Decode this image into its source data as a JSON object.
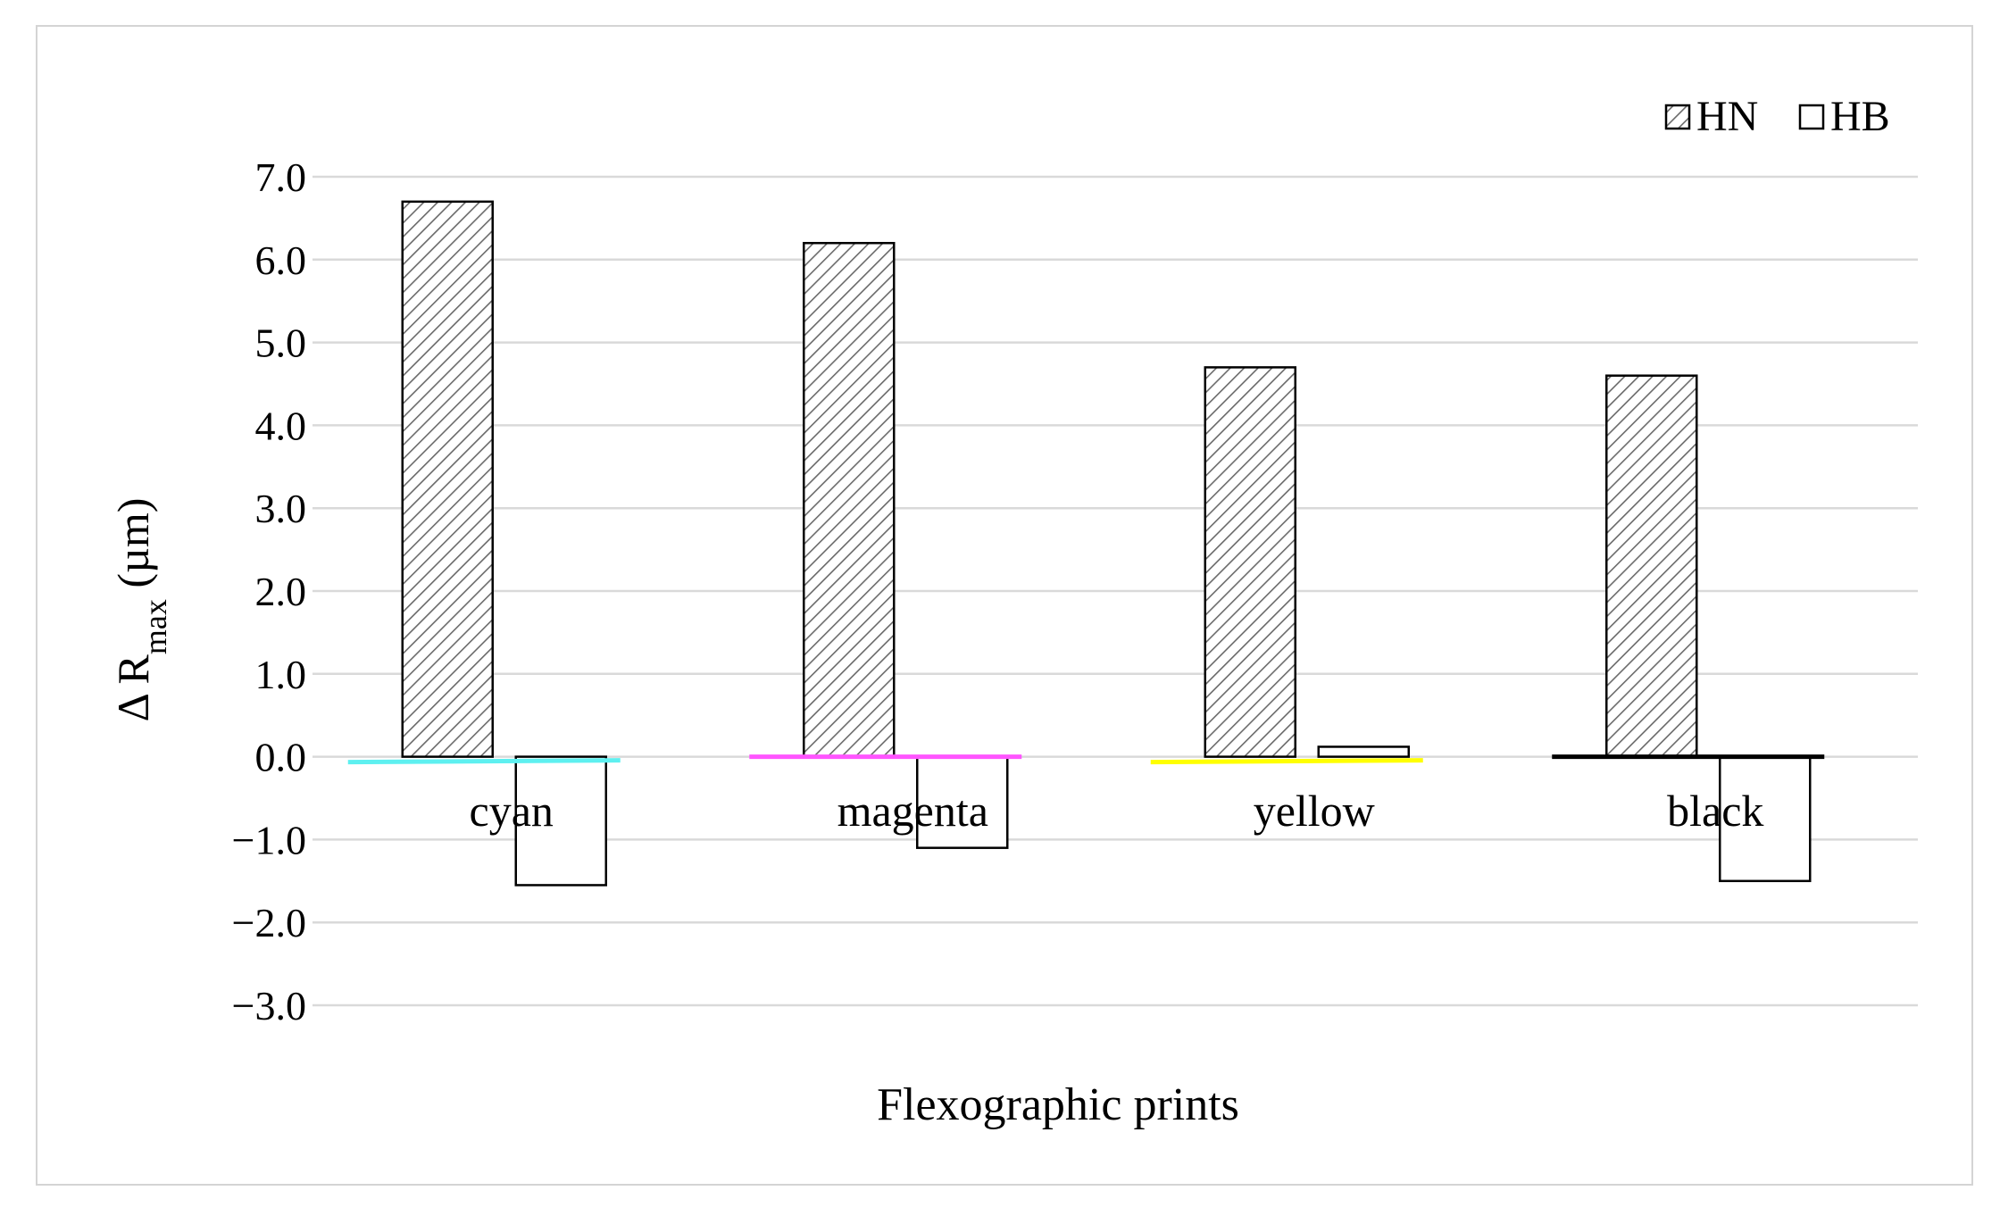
{
  "chart_data": {
    "type": "bar",
    "categories": [
      "cyan",
      "magenta",
      "yellow",
      "black"
    ],
    "series": [
      {
        "name": "HN",
        "values": [
          6.7,
          6.2,
          4.7,
          4.6
        ],
        "pattern": "diagonal-hatch"
      },
      {
        "name": "HB",
        "values": [
          -1.55,
          -1.1,
          0.12,
          -1.5
        ],
        "pattern": "none"
      }
    ],
    "baseline_colors": [
      "#5ef0f0",
      "#ff55ff",
      "#ffff00",
      "#000000"
    ],
    "xlabel": "Flexographic prints",
    "ylabel": {
      "prefix": "Δ R",
      "subscript": "max",
      "suffix": " (µm)"
    },
    "ylim": [
      -3.0,
      7.0
    ],
    "yticks": [
      "7.0",
      "6.0",
      "5.0",
      "4.0",
      "3.0",
      "2.0",
      "1.0",
      "0.0",
      "−1.0",
      "−2.0",
      "−3.0"
    ],
    "grid": true,
    "legend_position": "top-right"
  }
}
